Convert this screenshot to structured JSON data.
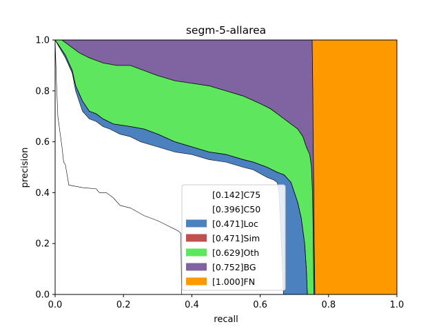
{
  "chart_data": {
    "type": "area",
    "title": "segm-5-allarea",
    "xlabel": "recall",
    "ylabel": "precision",
    "xlim": [
      0,
      1
    ],
    "ylim": [
      0,
      1
    ],
    "x_ticks": [
      "0.0",
      "0.2",
      "0.4",
      "0.6",
      "0.8",
      "1.0"
    ],
    "y_ticks": [
      "0.0",
      "0.2",
      "0.4",
      "0.6",
      "0.8",
      "1.0"
    ],
    "grid": false,
    "legend_position": "lower-center",
    "series": [
      {
        "name": "[0.142]C75",
        "color": "#ffffff",
        "points": [
          [
            0,
            1.0
          ],
          [
            0.004,
            0.83
          ],
          [
            0.008,
            0.7
          ],
          [
            0.015,
            0.63
          ],
          [
            0.02,
            0.58
          ],
          [
            0.025,
            0.52
          ],
          [
            0.03,
            0.51
          ],
          [
            0.035,
            0.47
          ],
          [
            0.04,
            0.43
          ],
          [
            0.06,
            0.425
          ],
          [
            0.08,
            0.42
          ],
          [
            0.12,
            0.415
          ],
          [
            0.13,
            0.4
          ],
          [
            0.15,
            0.4
          ],
          [
            0.17,
            0.38
          ],
          [
            0.19,
            0.35
          ],
          [
            0.22,
            0.34
          ],
          [
            0.26,
            0.31
          ],
          [
            0.3,
            0.29
          ],
          [
            0.33,
            0.27
          ],
          [
            0.36,
            0.25
          ],
          [
            0.368,
            0.24
          ],
          [
            0.37,
            0.0
          ]
        ]
      },
      {
        "name": "[0.396]C50",
        "color": "#ffffff",
        "points": [
          [
            0,
            1.0
          ],
          [
            0.03,
            0.93
          ],
          [
            0.05,
            0.87
          ],
          [
            0.06,
            0.8
          ],
          [
            0.08,
            0.72
          ],
          [
            0.1,
            0.69
          ],
          [
            0.12,
            0.68
          ],
          [
            0.14,
            0.66
          ],
          [
            0.16,
            0.65
          ],
          [
            0.19,
            0.63
          ],
          [
            0.22,
            0.62
          ],
          [
            0.25,
            0.6
          ],
          [
            0.3,
            0.58
          ],
          [
            0.35,
            0.56
          ],
          [
            0.4,
            0.55
          ],
          [
            0.45,
            0.53
          ],
          [
            0.5,
            0.52
          ],
          [
            0.55,
            0.5
          ],
          [
            0.58,
            0.49
          ],
          [
            0.62,
            0.46
          ],
          [
            0.64,
            0.45
          ],
          [
            0.65,
            0.44
          ],
          [
            0.655,
            0.4
          ],
          [
            0.66,
            0.25
          ],
          [
            0.665,
            0.1
          ],
          [
            0.668,
            0.0
          ]
        ]
      },
      {
        "name": "[0.471]Loc",
        "color": "#4c81bf",
        "points": [
          [
            0,
            1.0
          ],
          [
            0.03,
            0.94
          ],
          [
            0.05,
            0.88
          ],
          [
            0.06,
            0.82
          ],
          [
            0.08,
            0.76
          ],
          [
            0.1,
            0.72
          ],
          [
            0.12,
            0.71
          ],
          [
            0.14,
            0.69
          ],
          [
            0.17,
            0.67
          ],
          [
            0.22,
            0.66
          ],
          [
            0.26,
            0.65
          ],
          [
            0.3,
            0.63
          ],
          [
            0.35,
            0.6
          ],
          [
            0.4,
            0.58
          ],
          [
            0.45,
            0.56
          ],
          [
            0.5,
            0.55
          ],
          [
            0.55,
            0.53
          ],
          [
            0.58,
            0.52
          ],
          [
            0.62,
            0.5
          ],
          [
            0.65,
            0.48
          ],
          [
            0.67,
            0.47
          ],
          [
            0.69,
            0.44
          ],
          [
            0.7,
            0.4
          ],
          [
            0.71,
            0.36
          ],
          [
            0.72,
            0.3
          ],
          [
            0.73,
            0.2
          ],
          [
            0.735,
            0.1
          ],
          [
            0.738,
            0.0
          ]
        ]
      },
      {
        "name": "[0.471]Sim",
        "color": "#c0504d",
        "points": [
          [
            0,
            1.0
          ],
          [
            0.03,
            0.94
          ],
          [
            0.05,
            0.88
          ],
          [
            0.06,
            0.82
          ],
          [
            0.08,
            0.76
          ],
          [
            0.1,
            0.72
          ],
          [
            0.12,
            0.71
          ],
          [
            0.14,
            0.69
          ],
          [
            0.17,
            0.67
          ],
          [
            0.22,
            0.66
          ],
          [
            0.26,
            0.65
          ],
          [
            0.3,
            0.63
          ],
          [
            0.35,
            0.6
          ],
          [
            0.4,
            0.58
          ],
          [
            0.45,
            0.56
          ],
          [
            0.5,
            0.55
          ],
          [
            0.55,
            0.53
          ],
          [
            0.58,
            0.52
          ],
          [
            0.62,
            0.5
          ],
          [
            0.65,
            0.48
          ],
          [
            0.67,
            0.47
          ],
          [
            0.69,
            0.44
          ],
          [
            0.7,
            0.4
          ],
          [
            0.71,
            0.36
          ],
          [
            0.72,
            0.3
          ],
          [
            0.73,
            0.2
          ],
          [
            0.735,
            0.1
          ],
          [
            0.738,
            0.0
          ]
        ]
      },
      {
        "name": "[0.629]Oth",
        "color": "#5ee65e",
        "points": [
          [
            0,
            1.0
          ],
          [
            0.02,
            1.0
          ],
          [
            0.05,
            0.97
          ],
          [
            0.07,
            0.95
          ],
          [
            0.1,
            0.93
          ],
          [
            0.14,
            0.91
          ],
          [
            0.18,
            0.9
          ],
          [
            0.22,
            0.9
          ],
          [
            0.26,
            0.88
          ],
          [
            0.3,
            0.86
          ],
          [
            0.35,
            0.84
          ],
          [
            0.4,
            0.83
          ],
          [
            0.45,
            0.82
          ],
          [
            0.5,
            0.8
          ],
          [
            0.55,
            0.78
          ],
          [
            0.6,
            0.75
          ],
          [
            0.63,
            0.73
          ],
          [
            0.66,
            0.7
          ],
          [
            0.69,
            0.67
          ],
          [
            0.71,
            0.65
          ],
          [
            0.725,
            0.62
          ],
          [
            0.735,
            0.58
          ],
          [
            0.745,
            0.55
          ],
          [
            0.75,
            0.5
          ],
          [
            0.753,
            0.4
          ],
          [
            0.755,
            0.25
          ],
          [
            0.757,
            0.0
          ]
        ]
      },
      {
        "name": "[0.752]BG",
        "color": "#8064a2",
        "points": [
          [
            0,
            1.0
          ],
          [
            0.752,
            1.0
          ],
          [
            0.753,
            0.9
          ],
          [
            0.754,
            0.8
          ],
          [
            0.755,
            0.6
          ],
          [
            0.757,
            0.4
          ],
          [
            0.758,
            0.2
          ],
          [
            0.76,
            0.0
          ]
        ]
      },
      {
        "name": "[1.000]FN",
        "color": "#ff9900",
        "points": [
          [
            0,
            1.0
          ],
          [
            1.0,
            1.0
          ],
          [
            1.0,
            0.0
          ]
        ]
      }
    ]
  }
}
